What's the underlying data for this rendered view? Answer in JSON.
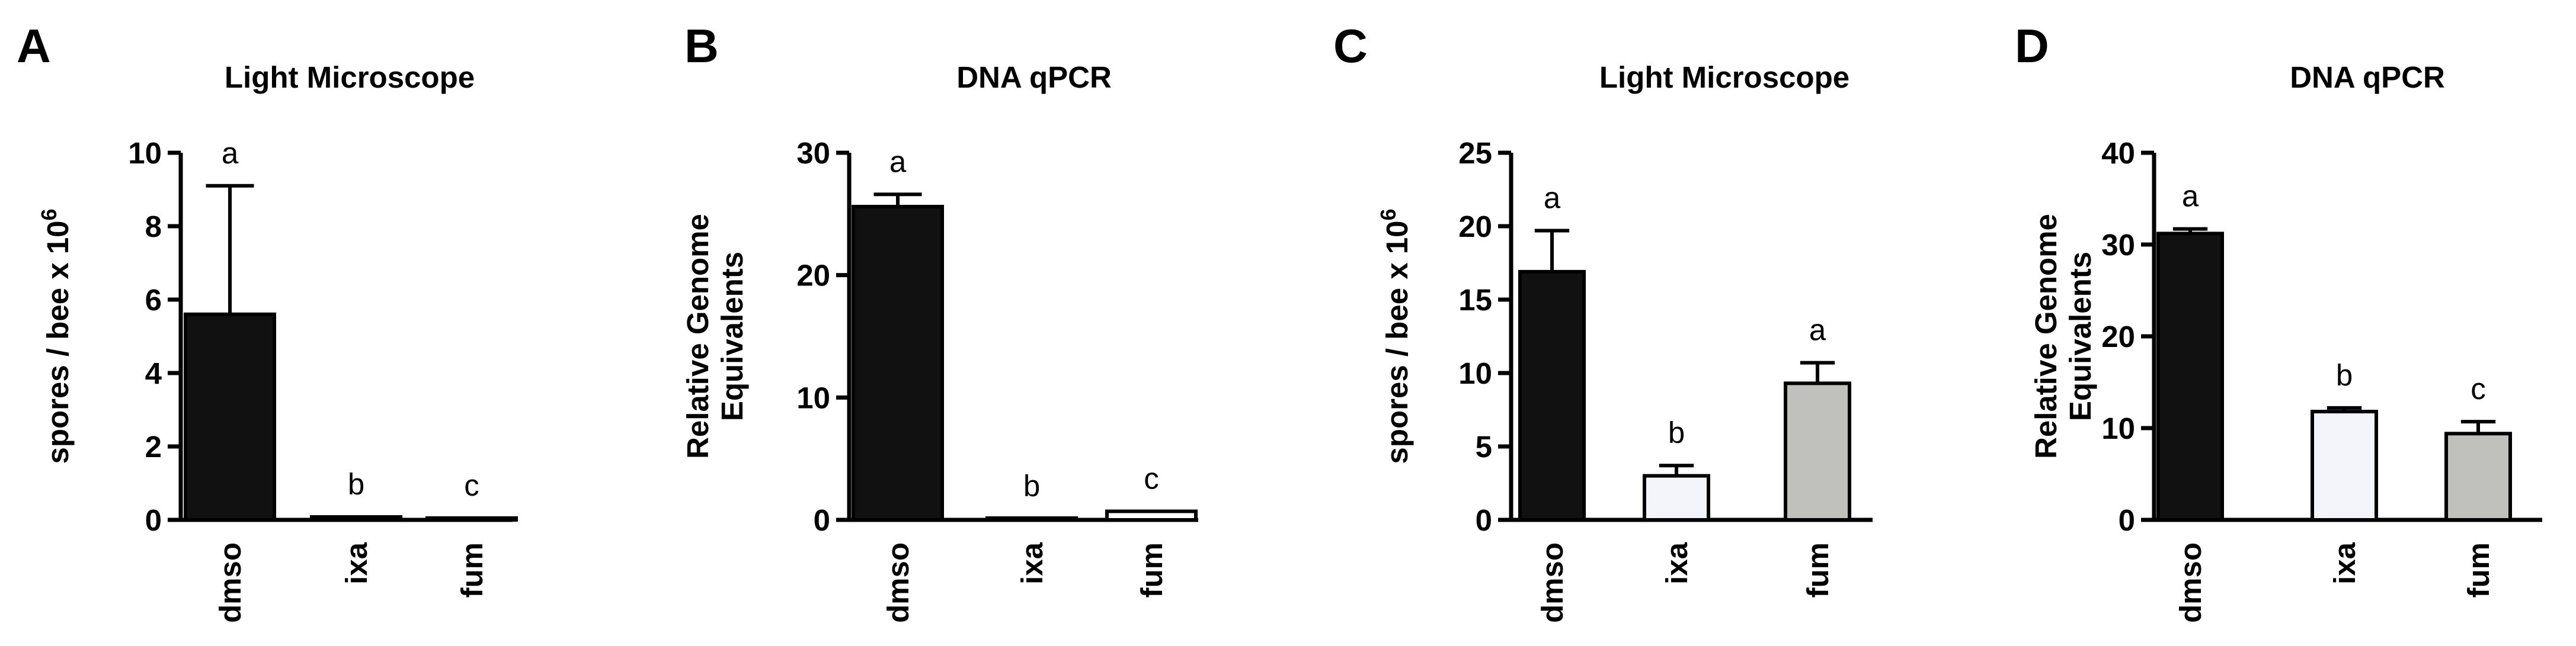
{
  "chart_data": [
    {
      "type": "bar",
      "panel": "A",
      "title": "Light Microscope",
      "ylabel": "spores / bee x 10",
      "ylabel_superscript": "6",
      "categories": [
        "dmso",
        "ixa",
        "fum"
      ],
      "values": [
        5.6,
        0.08,
        0.05
      ],
      "errors": [
        3.5,
        0.0,
        0.0
      ],
      "significance": [
        "a",
        "b",
        "c"
      ],
      "bar_colors": [
        "#111111",
        "#ffffff",
        "#ffffff"
      ],
      "ylim": [
        0,
        10
      ],
      "yticks": [
        0,
        2,
        4,
        6,
        8,
        10
      ],
      "ytick_labels": [
        "0",
        "2",
        "4",
        "6",
        "8",
        "10"
      ]
    },
    {
      "type": "bar",
      "panel": "B",
      "title": "DNA qPCR",
      "ylabel": "Relative Genome Equivalents",
      "ylabel_lines": [
        "Relative Genome",
        "Equivalents"
      ],
      "categories": [
        "dmso",
        "ixa",
        "fum"
      ],
      "values": [
        25.6,
        0.1,
        0.7
      ],
      "errors": [
        1.0,
        0.0,
        0.0
      ],
      "significance": [
        "a",
        "b",
        "c"
      ],
      "bar_colors": [
        "#111111",
        "#ffffff",
        "#ffffff"
      ],
      "ylim": [
        0,
        30
      ],
      "yticks": [
        0,
        10,
        20,
        30
      ],
      "ytick_labels": [
        "0",
        "10",
        "20",
        "30"
      ]
    },
    {
      "type": "bar",
      "panel": "C",
      "title": "Light Microscope",
      "ylabel": "spores / bee x 10",
      "ylabel_superscript": "6",
      "categories": [
        "dmso",
        "ixa",
        "fum"
      ],
      "values": [
        16.9,
        3.0,
        9.3
      ],
      "errors": [
        2.8,
        0.7,
        1.4
      ],
      "significance": [
        "a",
        "b",
        "a"
      ],
      "bar_colors": [
        "#111111",
        "#f4f4fb",
        "#c0c0bc"
      ],
      "ylim": [
        0,
        25
      ],
      "yticks": [
        0,
        5,
        10,
        15,
        20,
        25
      ],
      "ytick_labels": [
        "0",
        "5",
        "10",
        "15",
        "20",
        "25"
      ]
    },
    {
      "type": "bar",
      "panel": "D",
      "title": "DNA qPCR",
      "ylabel": "Relative Genome Equivalents",
      "ylabel_lines": [
        "Relative Genome",
        "Equivalents"
      ],
      "categories": [
        "dmso",
        "ixa",
        "fum"
      ],
      "values": [
        31.2,
        11.8,
        9.4
      ],
      "errors": [
        0.5,
        0.4,
        1.3
      ],
      "significance": [
        "a",
        "b",
        "c"
      ],
      "bar_colors": [
        "#111111",
        "#f4f4fb",
        "#c0c0bc"
      ],
      "ylim": [
        0,
        40
      ],
      "yticks": [
        0,
        10,
        20,
        30,
        40
      ],
      "ytick_labels": [
        "0",
        "10",
        "20",
        "30",
        "40"
      ]
    }
  ]
}
